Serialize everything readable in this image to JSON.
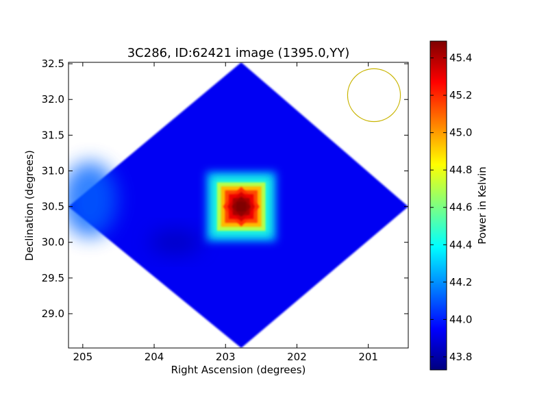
{
  "chart_data": {
    "type": "heatmap",
    "title": "3C286, ID:62421 image (1395.0,YY)",
    "xlabel": "Right Ascension (degrees)",
    "ylabel": "Declination (degrees)",
    "colorbar_label": "Power in Kelvin",
    "x_range": [
      205.2,
      200.44
    ],
    "y_range": [
      28.52,
      32.52
    ],
    "x_ticks": [
      205,
      204,
      203,
      202,
      201
    ],
    "x_tick_labels": [
      "205",
      "204",
      "203",
      "202",
      "201"
    ],
    "y_ticks": [
      29.0,
      29.5,
      30.0,
      30.5,
      31.0,
      31.5,
      32.0,
      32.5
    ],
    "y_tick_labels": [
      "29.0",
      "29.5",
      "30.0",
      "30.5",
      "31.0",
      "31.5",
      "32.0",
      "32.5"
    ],
    "colorbar_range": [
      43.73,
      45.49
    ],
    "colorbar_ticks": [
      43.8,
      44.0,
      44.2,
      44.4,
      44.6,
      44.8,
      45.0,
      45.2,
      45.4
    ],
    "colorbar_tick_labels": [
      "43.8",
      "44.0",
      "44.2",
      "44.4",
      "44.6",
      "44.8",
      "45.0",
      "45.2",
      "45.4"
    ],
    "colormap": "jet",
    "background_level": 43.93,
    "source": {
      "ra": 202.78,
      "dec": 30.5,
      "peak": 45.49
    },
    "map_footprint": [
      [
        202.78,
        32.52
      ],
      [
        200.44,
        30.5
      ],
      [
        202.78,
        28.52
      ],
      [
        205.2,
        30.5
      ]
    ],
    "beam": {
      "ra": 200.92,
      "dec": 32.06,
      "radius_deg": 0.37,
      "color": "#c8b400"
    },
    "grid": false
  }
}
